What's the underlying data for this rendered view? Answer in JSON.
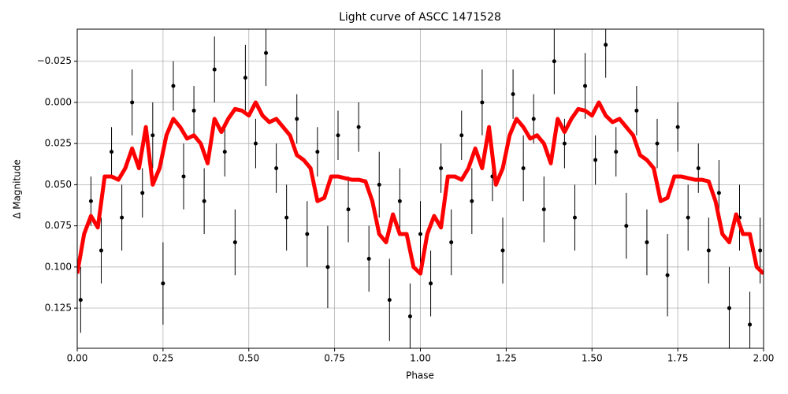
{
  "chart_data": {
    "type": "scatter",
    "title": "Light curve of ASCC 1471528",
    "x_label": "Phase",
    "y_label": "Δ Magnitude",
    "xlim": [
      0,
      2
    ],
    "ylim": [
      -0.0445,
      0.1494
    ],
    "y_inverted": true,
    "grid": true,
    "xticks": [
      {
        "value": 0,
        "label": "0.00"
      },
      {
        "value": 0.25,
        "label": "0.25"
      },
      {
        "value": 0.5,
        "label": "0.50"
      },
      {
        "value": 0.75,
        "label": "0.75"
      },
      {
        "value": 1,
        "label": "1.00"
      },
      {
        "value": 1.25,
        "label": "1.25"
      },
      {
        "value": 1.5,
        "label": "1.50"
      },
      {
        "value": 1.75,
        "label": "1.75"
      },
      {
        "value": 2,
        "label": "2.00"
      }
    ],
    "yticks": [
      {
        "value": -0.025,
        "label": "−0.025"
      },
      {
        "value": 0,
        "label": "0.000"
      },
      0.025,
      {
        "value": 0.05,
        "label": "0.050"
      },
      {
        "value": 0.075,
        "label": "0.075"
      },
      {
        "value": 0.1,
        "label": "0.100"
      },
      0.125
    ],
    "series": [
      {
        "type": "errorbar",
        "color": "#000000",
        "x": [
          0.01,
          0.04,
          0.07,
          0.1,
          0.13,
          0.16,
          0.19,
          0.22,
          0.25,
          0.28,
          0.31,
          0.34,
          0.37,
          0.4,
          0.43,
          0.46,
          0.49,
          0.52,
          0.55,
          0.58,
          0.61,
          0.64,
          0.67,
          0.7,
          0.73,
          0.76,
          0.79,
          0.82,
          0.85,
          0.88,
          0.91,
          0.94,
          0.97,
          1.0,
          1.03,
          1.06,
          1.09,
          1.12,
          1.15,
          1.18,
          1.21,
          1.24,
          1.27,
          1.3,
          1.33,
          1.36,
          1.39,
          1.42,
          1.45,
          1.48,
          1.51,
          1.54,
          1.57,
          1.6,
          1.63,
          1.66,
          1.69,
          1.72,
          1.75,
          1.78,
          1.81,
          1.84,
          1.87,
          1.9,
          1.93,
          1.96,
          1.99
        ],
        "values": [
          0.12,
          0.06,
          0.09,
          0.03,
          0.07,
          0.0,
          0.055,
          0.02,
          0.11,
          -0.01,
          0.045,
          0.005,
          0.06,
          -0.02,
          0.03,
          0.085,
          -0.015,
          0.025,
          -0.03,
          0.04,
          0.07,
          0.01,
          0.08,
          0.03,
          0.1,
          0.02,
          0.065,
          0.015,
          0.095,
          0.05,
          0.12,
          0.06,
          0.13,
          0.08,
          0.11,
          0.04,
          0.085,
          0.02,
          0.06,
          0.0,
          0.045,
          0.09,
          -0.005,
          0.04,
          0.01,
          0.065,
          -0.025,
          0.025,
          0.07,
          -0.01,
          0.035,
          -0.035,
          0.03,
          0.075,
          0.005,
          0.085,
          0.025,
          0.105,
          0.015,
          0.07,
          0.04,
          0.09,
          0.055,
          0.125,
          0.07,
          0.135,
          0.09
        ],
        "errors": [
          0.02,
          0.015,
          0.02,
          0.015,
          0.02,
          0.02,
          0.015,
          0.02,
          0.025,
          0.015,
          0.02,
          0.015,
          0.02,
          0.02,
          0.015,
          0.02,
          0.02,
          0.015,
          0.02,
          0.015,
          0.02,
          0.015,
          0.02,
          0.015,
          0.025,
          0.015,
          0.02,
          0.015,
          0.02,
          0.02,
          0.025,
          0.02,
          0.02,
          0.02,
          0.02,
          0.015,
          0.02,
          0.015,
          0.02,
          0.02,
          0.015,
          0.02,
          0.015,
          0.02,
          0.015,
          0.02,
          0.02,
          0.015,
          0.02,
          0.02,
          0.015,
          0.02,
          0.015,
          0.02,
          0.015,
          0.02,
          0.015,
          0.025,
          0.015,
          0.02,
          0.015,
          0.02,
          0.02,
          0.025,
          0.02,
          0.02,
          0.02
        ]
      },
      {
        "type": "line",
        "color": "#ff0000",
        "x": [
          0.0,
          0.02,
          0.04,
          0.06,
          0.08,
          0.1,
          0.12,
          0.14,
          0.16,
          0.18,
          0.2,
          0.22,
          0.24,
          0.26,
          0.28,
          0.3,
          0.32,
          0.34,
          0.36,
          0.38,
          0.4,
          0.42,
          0.44,
          0.46,
          0.48,
          0.5,
          0.52,
          0.54,
          0.56,
          0.58,
          0.6,
          0.62,
          0.64,
          0.66,
          0.68,
          0.7,
          0.72,
          0.74,
          0.76,
          0.78,
          0.8,
          0.82,
          0.84,
          0.86,
          0.88,
          0.9,
          0.92,
          0.94,
          0.96,
          0.98,
          1.0,
          1.02,
          1.04,
          1.06,
          1.08,
          1.1,
          1.12,
          1.14,
          1.16,
          1.18,
          1.2,
          1.22,
          1.24,
          1.26,
          1.28,
          1.3,
          1.32,
          1.34,
          1.36,
          1.38,
          1.4,
          1.42,
          1.44,
          1.46,
          1.48,
          1.5,
          1.52,
          1.54,
          1.56,
          1.58,
          1.6,
          1.62,
          1.64,
          1.66,
          1.68,
          1.7,
          1.72,
          1.74,
          1.76,
          1.78,
          1.8,
          1.82,
          1.84,
          1.86,
          1.88,
          1.9,
          1.92,
          1.94,
          1.96,
          1.98,
          2.0
        ],
        "values": [
          0.104,
          0.08,
          0.069,
          0.076,
          0.045,
          0.045,
          0.047,
          0.04,
          0.028,
          0.04,
          0.015,
          0.05,
          0.04,
          0.02,
          0.01,
          0.015,
          0.022,
          0.02,
          0.025,
          0.037,
          0.01,
          0.018,
          0.01,
          0.004,
          0.005,
          0.008,
          0.0,
          0.008,
          0.012,
          0.01,
          0.015,
          0.02,
          0.032,
          0.035,
          0.04,
          0.06,
          0.058,
          0.045,
          0.045,
          0.046,
          0.047,
          0.047,
          0.048,
          0.06,
          0.08,
          0.085,
          0.068,
          0.08,
          0.08,
          0.1,
          0.104,
          0.08,
          0.069,
          0.076,
          0.045,
          0.045,
          0.047,
          0.04,
          0.028,
          0.04,
          0.015,
          0.05,
          0.04,
          0.02,
          0.01,
          0.015,
          0.022,
          0.02,
          0.025,
          0.037,
          0.01,
          0.018,
          0.01,
          0.004,
          0.005,
          0.008,
          0.0,
          0.008,
          0.012,
          0.01,
          0.015,
          0.02,
          0.032,
          0.035,
          0.04,
          0.06,
          0.058,
          0.045,
          0.045,
          0.046,
          0.047,
          0.047,
          0.048,
          0.06,
          0.08,
          0.085,
          0.068,
          0.08,
          0.08,
          0.1,
          0.104
        ]
      }
    ]
  }
}
